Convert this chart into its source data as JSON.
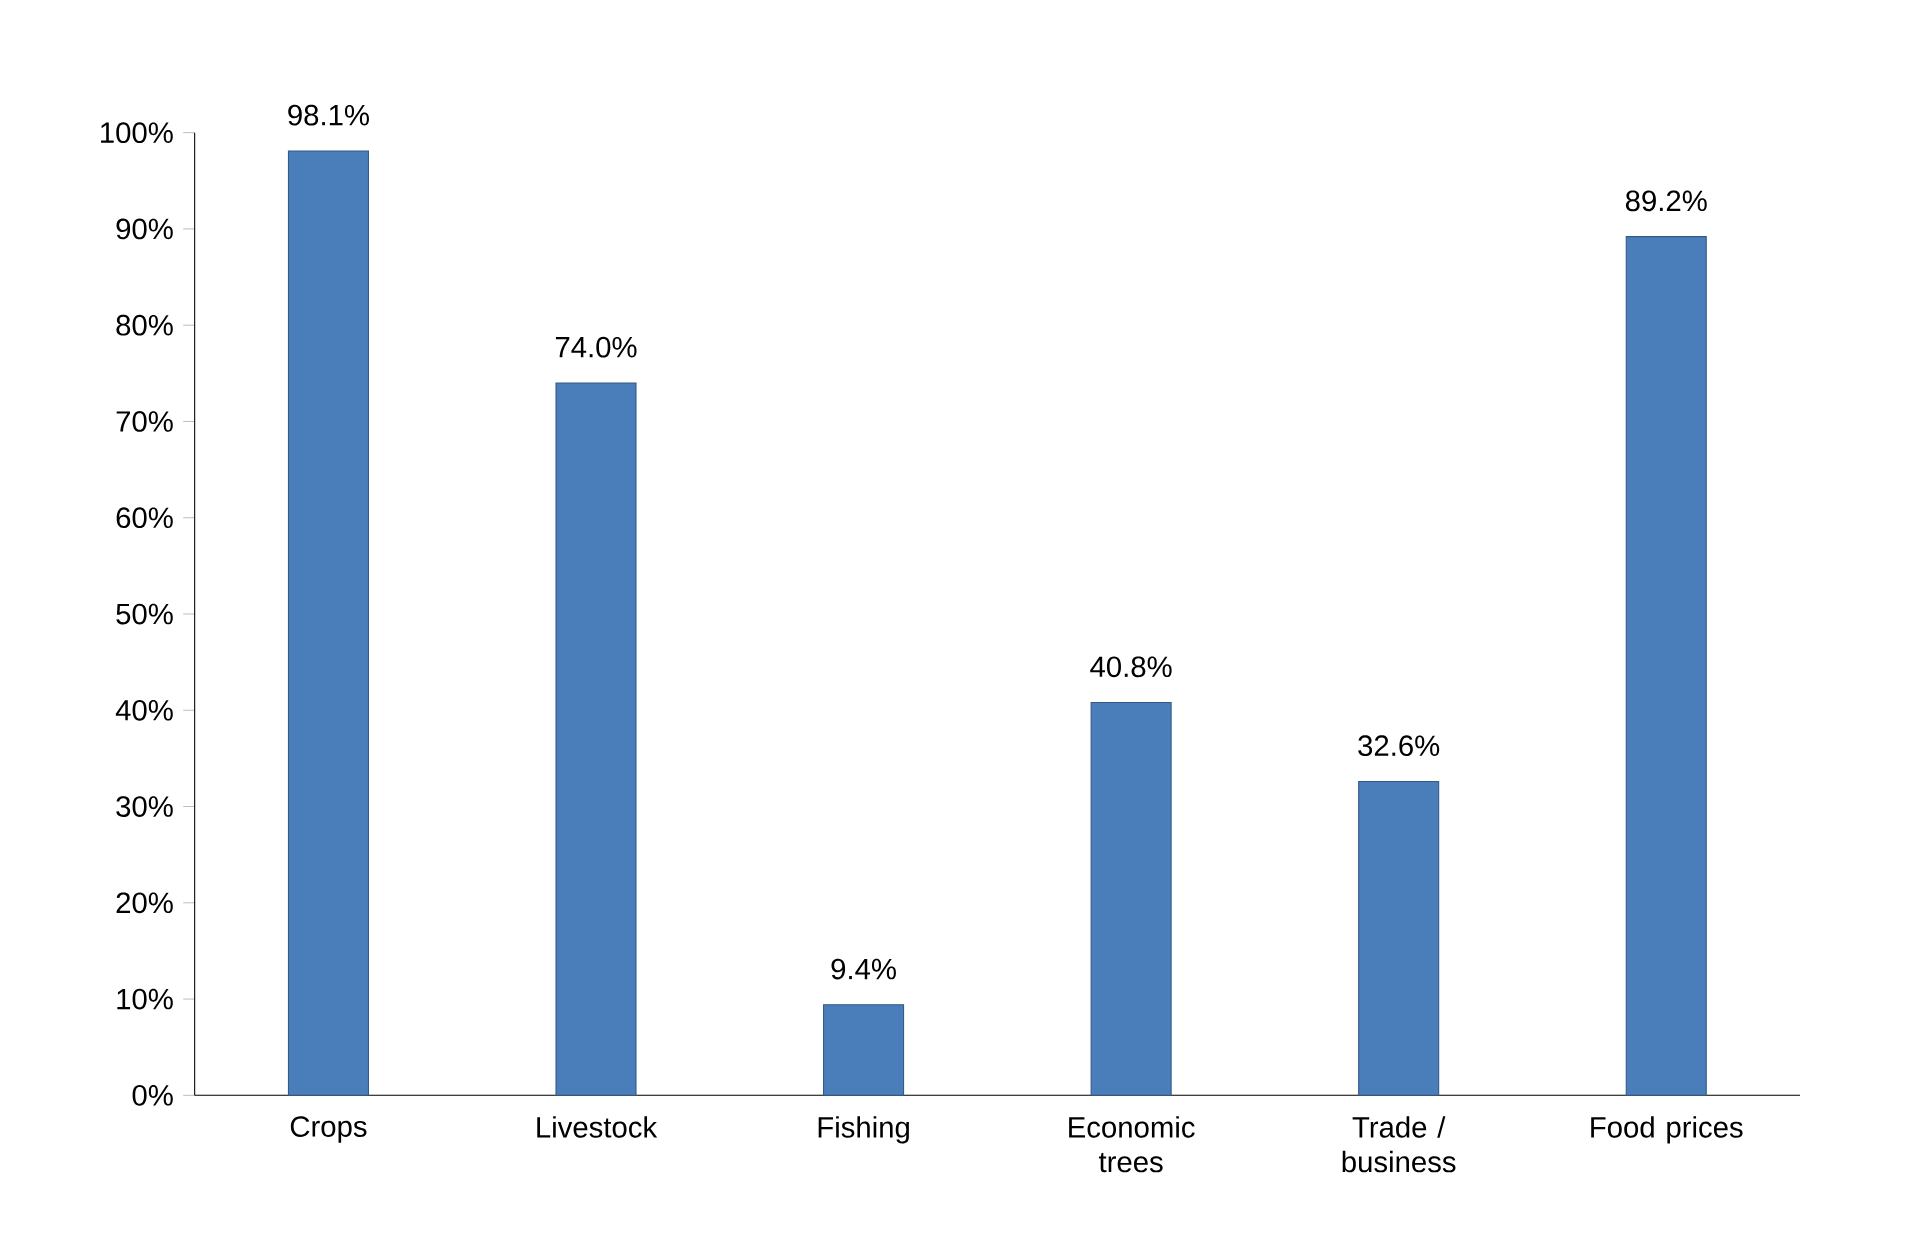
{
  "chart_data": {
    "type": "bar",
    "categories": [
      "Crops",
      "Livestock",
      "Fishing",
      "Economic trees",
      "Trade / business",
      "Food prices"
    ],
    "values": [
      98.1,
      74.0,
      9.4,
      40.8,
      32.6,
      89.2
    ],
    "value_labels": [
      "98.1%",
      "74.0%",
      "9.4%",
      "40.8%",
      "32.6%",
      "89.2%"
    ],
    "color": "#4a7ebb",
    "ylim": [
      0,
      100
    ],
    "yticks": [
      {
        "value": 0,
        "label": "0%"
      },
      {
        "value": 10,
        "label": "10%"
      },
      {
        "value": 20,
        "label": "20%"
      },
      {
        "value": 30,
        "label": "30%"
      },
      {
        "value": 40,
        "label": "40%"
      },
      {
        "value": 50,
        "label": "50%"
      },
      {
        "value": 60,
        "label": "60%"
      },
      {
        "value": 70,
        "label": "70%"
      },
      {
        "value": 80,
        "label": "80%"
      },
      {
        "value": 90,
        "label": "90%"
      },
      {
        "value": 100,
        "label": "100%"
      }
    ],
    "grid": false
  }
}
